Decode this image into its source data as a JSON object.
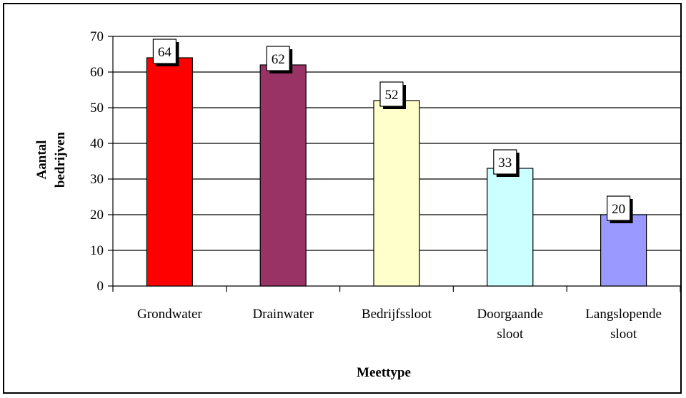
{
  "chart_data": {
    "type": "bar",
    "categories": [
      [
        "Grondwater"
      ],
      [
        "Drainwater"
      ],
      [
        "Bedrijfssloot"
      ],
      [
        "Doorgaande",
        "sloot"
      ],
      [
        "Langslopende",
        "sloot"
      ]
    ],
    "values": [
      64,
      62,
      52,
      33,
      20
    ],
    "colors": [
      "#ff0000",
      "#993366",
      "#ffffcc",
      "#ccffff",
      "#9999ff"
    ],
    "ylabel_lines": [
      "Aantal",
      "bedrijven"
    ],
    "xlabel": "Meettype",
    "ylim": [
      0,
      70
    ],
    "yticks": [
      0,
      10,
      20,
      30,
      40,
      50,
      60,
      70
    ],
    "grid": true,
    "legend": "none",
    "data_labels": true
  }
}
